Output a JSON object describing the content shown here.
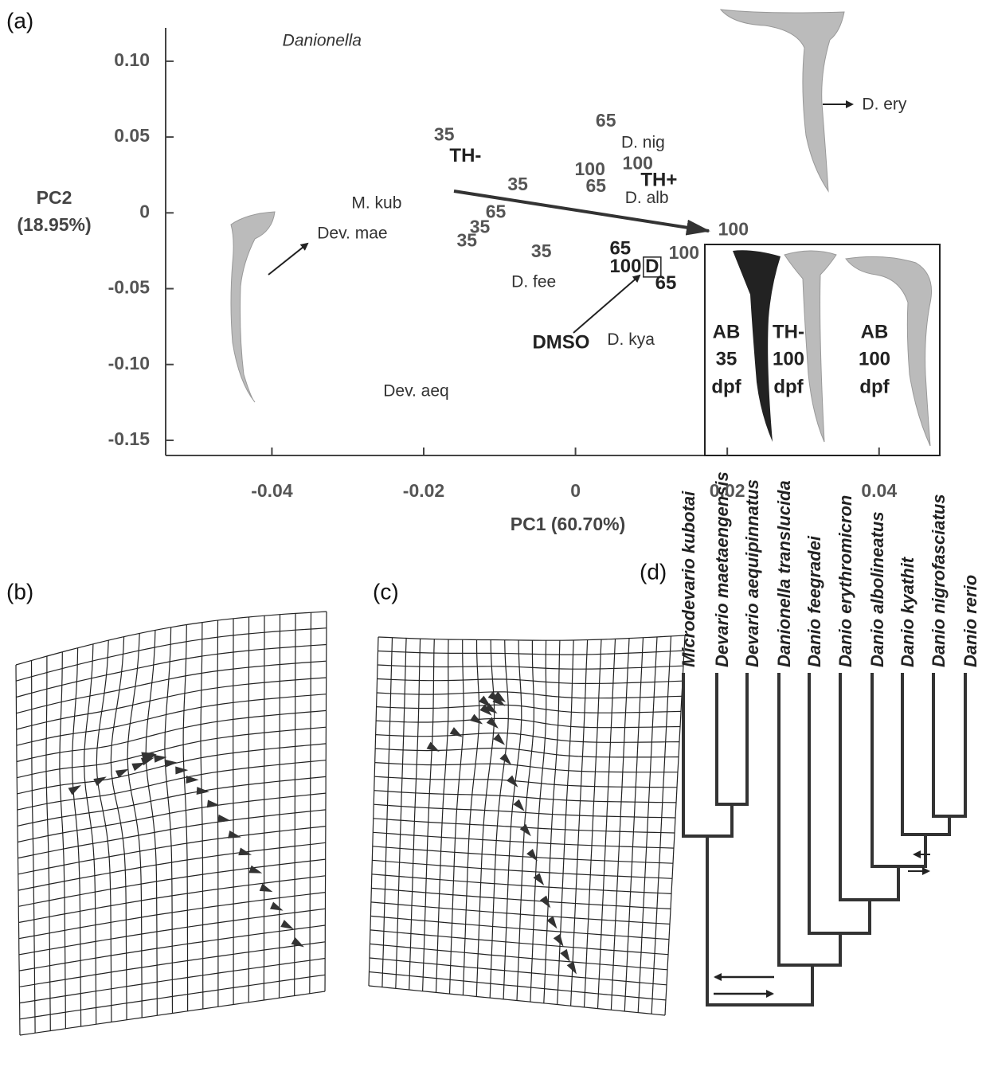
{
  "panel_labels": [
    "(a)",
    "(b)",
    "(c)",
    "(d)"
  ],
  "chart_data": {
    "type": "scatter",
    "xlabel": "PC1 (60.70%)",
    "ylabel": [
      "PC2",
      "(18.95%)"
    ],
    "xlim": [
      -0.054,
      0.048
    ],
    "ylim": [
      -0.16,
      0.122
    ],
    "xticks": [
      -0.04,
      -0.02,
      0,
      0.02,
      0.04
    ],
    "yticks": [
      -0.15,
      {
        "value": -0.1,
        "label": "-0.10"
      },
      -0.05,
      0,
      0.05,
      {
        "value": 0.1,
        "label": "0.10"
      }
    ],
    "points": [
      {
        "label": "Danionella",
        "x": -0.0334,
        "y": 0.113,
        "style": "genus"
      },
      {
        "label": "35",
        "x": -0.0173,
        "y": 0.051,
        "style": "number"
      },
      {
        "label": "TH-",
        "x": -0.0145,
        "y": 0.037,
        "style": "bold"
      },
      {
        "label": "35",
        "x": -0.0076,
        "y": 0.018,
        "style": "number"
      },
      {
        "label": "65",
        "x": -0.0105,
        "y": 0.0,
        "style": "number"
      },
      {
        "label": "35",
        "x": -0.0126,
        "y": -0.01,
        "style": "number"
      },
      {
        "label": "35",
        "x": -0.0143,
        "y": -0.019,
        "style": "number"
      },
      {
        "label": "M. kub",
        "x": -0.0262,
        "y": 0.006,
        "style": "species"
      },
      {
        "label": "Dev. mae",
        "x": -0.0294,
        "y": -0.014,
        "style": "species"
      },
      {
        "label": "65",
        "x": 0.004,
        "y": 0.06,
        "style": "number"
      },
      {
        "label": "D. nig",
        "x": 0.0089,
        "y": 0.046,
        "style": "species"
      },
      {
        "label": "100",
        "x": 0.0019,
        "y": 0.028,
        "style": "number"
      },
      {
        "label": "100",
        "x": 0.0082,
        "y": 0.032,
        "style": "number"
      },
      {
        "label": "65",
        "x": 0.0027,
        "y": 0.017,
        "style": "number"
      },
      {
        "label": "TH+",
        "x": 0.011,
        "y": 0.021,
        "style": "bold"
      },
      {
        "label": "D. alb",
        "x": 0.0094,
        "y": 0.0095,
        "style": "species"
      },
      {
        "label": "100",
        "x": 0.0208,
        "y": -0.0116,
        "style": "number"
      },
      {
        "label": "35",
        "x": -0.0045,
        "y": -0.026,
        "style": "number"
      },
      {
        "label": "65",
        "x": 0.0059,
        "y": -0.024,
        "style": "bold"
      },
      {
        "label": "100",
        "x": 0.0066,
        "y": -0.036,
        "style": "bold"
      },
      {
        "label": "D",
        "x": 0.0101,
        "y": -0.036,
        "style": "boxed"
      },
      {
        "label": "100",
        "x": 0.0143,
        "y": -0.027,
        "style": "number"
      },
      {
        "label": "65",
        "x": 0.0119,
        "y": -0.047,
        "style": "bold"
      },
      {
        "label": "D. fee",
        "x": -0.0055,
        "y": -0.046,
        "style": "species"
      },
      {
        "label": "DMSO",
        "x": -0.0019,
        "y": -0.086,
        "style": "bold"
      },
      {
        "label": "D. kya",
        "x": 0.0073,
        "y": -0.084,
        "style": "species"
      },
      {
        "label": "Dev. aeq",
        "x": -0.021,
        "y": -0.118,
        "style": "species"
      },
      {
        "label": "D. ery",
        "x": 0.0407,
        "y": 0.071,
        "style": "species"
      }
    ]
  },
  "inset_labels": [
    [
      "AB",
      "35",
      "dpf"
    ],
    [
      "TH-",
      "100",
      "dpf"
    ],
    [
      "AB",
      "100",
      "dpf"
    ]
  ],
  "tree_species": [
    "Microdevario kubotai",
    "Devario maetaengensis",
    "Devario aequipinnatus",
    "Danionella translucida",
    "Danio feegradei",
    "Danio erythromicron",
    "Danio albolineatus",
    "Danio kyathit",
    "Danio nigrofasciatus",
    "Danio rerio"
  ]
}
